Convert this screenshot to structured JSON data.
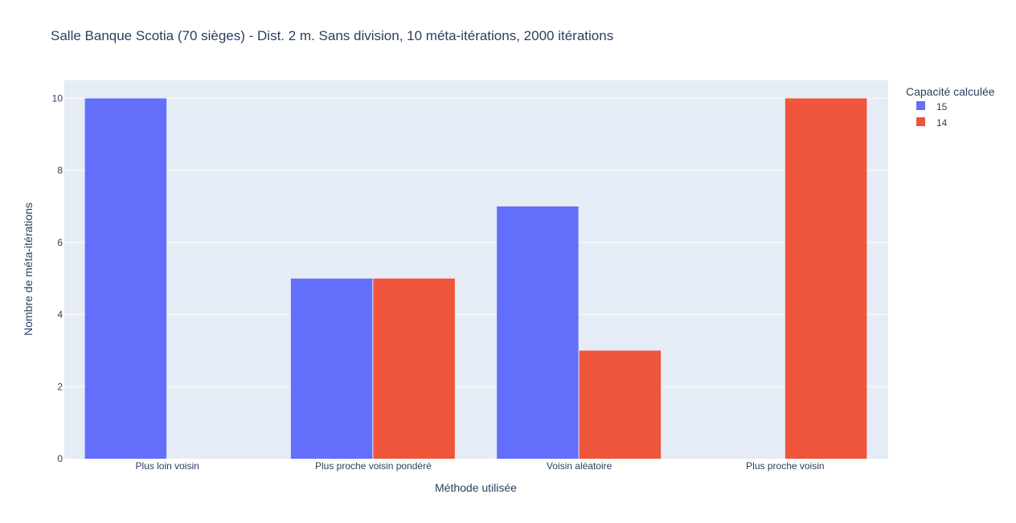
{
  "chart_data": {
    "type": "bar",
    "title": "Salle Banque Scotia (70 sièges) - Dist. 2 m. Sans division, 10 méta-itérations, 2000 itérations",
    "xlabel": "Méthode utilisée",
    "ylabel": "Nombre de méta-itérations",
    "categories": [
      "Plus loin voisin",
      "Plus proche voisin pondéré",
      "Voisin aléatoire",
      "Plus proche voisin"
    ],
    "series": [
      {
        "name": "15",
        "color": "#636efa",
        "values": [
          10,
          5,
          7,
          0
        ]
      },
      {
        "name": "14",
        "color": "#ef553b",
        "values": [
          0,
          5,
          3,
          10
        ]
      }
    ],
    "ylim": [
      0,
      10.5
    ],
    "yticks": [
      0,
      2,
      4,
      6,
      8,
      10
    ],
    "grid": true,
    "legend": {
      "title": "Capacité calculée",
      "position": "top-right"
    },
    "plot_bgcolor": "#e5ecf6",
    "grid_color": "#ffffff"
  }
}
